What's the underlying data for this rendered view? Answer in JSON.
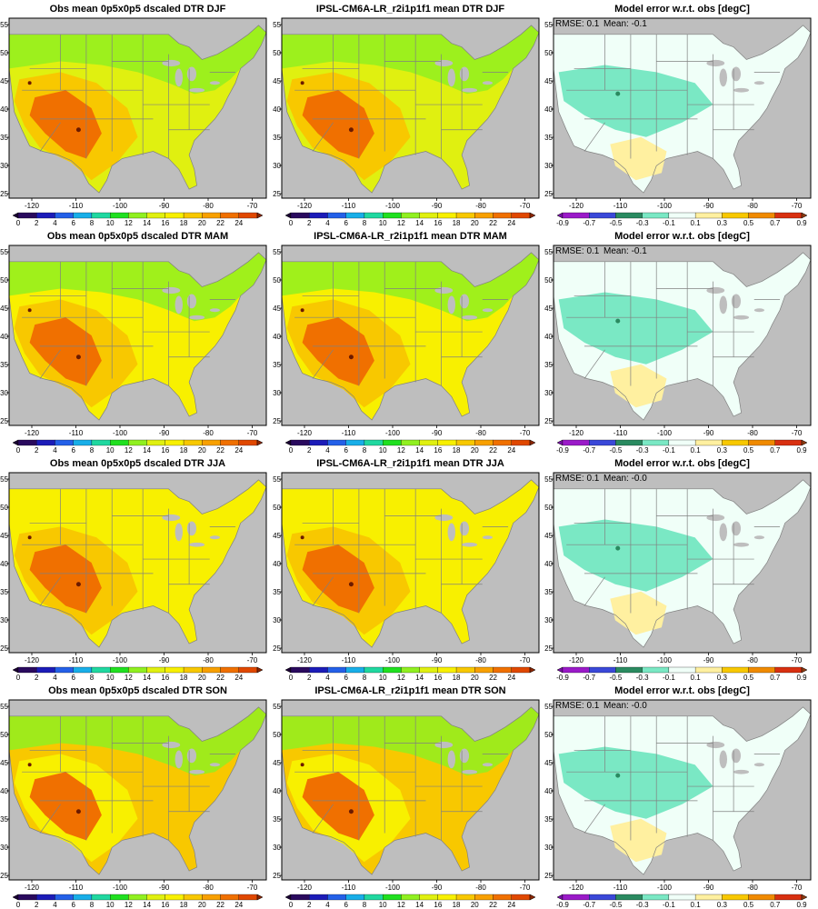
{
  "lon_ticks": [
    "-120",
    "-110",
    "-100",
    "-90",
    "-80",
    "-70"
  ],
  "lat_ticks": [
    "25",
    "30",
    "35",
    "40",
    "45",
    "50",
    "55"
  ],
  "colorbars": {
    "dtr": {
      "labels": [
        "0",
        "2",
        "4",
        "6",
        "8",
        "10",
        "12",
        "14",
        "16",
        "18",
        "20",
        "22",
        "24"
      ],
      "colors": [
        "#2a0a5e",
        "#1c1cb8",
        "#2460e8",
        "#18aee8",
        "#20d8a0",
        "#20e020",
        "#90f020",
        "#e0f010",
        "#f8f000",
        "#f8c800",
        "#f8a000",
        "#f07000",
        "#e04800"
      ],
      "below_color": "#1a0033",
      "above_color": "#8b2500"
    },
    "err": {
      "labels": [
        "-0.9",
        "-0.7",
        "-0.5",
        "-0.3",
        "-0.1",
        "0.1",
        "0.3",
        "0.5",
        "0.7",
        "0.9"
      ],
      "colors": [
        "#9a1ac8",
        "#3a48d8",
        "#2a8a60",
        "#7ae8c4",
        "#f0fff8",
        "#fff0a0",
        "#f8c800",
        "#f08a00",
        "#d83010"
      ],
      "below_color": "#7a10a8",
      "above_color": "#8b3a10"
    }
  },
  "rows": [
    {
      "season": "DJF",
      "obs_title": "Obs mean 0p5x0p5 dscaled DTR DJF",
      "model_title": "IPSL-CM6A-LR_r2i1p1f1 mean DTR DJF",
      "err_title": "Model error w.r.t. obs [degC]",
      "rmse": "RMSE: 0.1",
      "mean": "Mean: -0.1",
      "dominant": "#e0f010",
      "feature": "#f8c800",
      "hot": "#f07000",
      "err_base": "#f0fff8",
      "err_blob": "#7ae8c4",
      "err_warm": "#fff0a0"
    },
    {
      "season": "MAM",
      "obs_title": "Obs mean 0p5x0p5 dscaled DTR MAM",
      "model_title": "IPSL-CM6A-LR_r2i1p1f1 mean DTR MAM",
      "err_title": "Model error w.r.t. obs [degC]",
      "rmse": "RMSE: 0.1",
      "mean": "Mean: -0.1",
      "dominant": "#f8f000",
      "feature": "#f8c800",
      "hot": "#f07000",
      "err_base": "#f0fff8",
      "err_blob": "#7ae8c4",
      "err_warm": "#fff0a0"
    },
    {
      "season": "JJA",
      "obs_title": "Obs mean 0p5x0p5 dscaled DTR JJA",
      "model_title": "IPSL-CM6A-LR_r2i1p1f1 mean DTR JJA",
      "err_title": "Model error w.r.t. obs [degC]",
      "rmse": "RMSE: 0.1",
      "mean": "Mean: -0.0",
      "dominant": "#f8f000",
      "feature": "#f8c800",
      "hot": "#f07000",
      "err_base": "#f0fff8",
      "err_blob": "#7ae8c4",
      "err_warm": "#fff0a0"
    },
    {
      "season": "SON",
      "obs_title": "Obs mean 0p5x0p5 dscaled DTR SON",
      "model_title": "IPSL-CM6A-LR_r2i1p1f1 mean DTR SON",
      "err_title": "Model error w.r.t. obs [degC]",
      "rmse": "RMSE: 0.1",
      "mean": "Mean: -0.0",
      "dominant": "#f8c800",
      "feature": "#f8f000",
      "hot": "#f07000",
      "err_base": "#f0fff8",
      "err_blob": "#7ae8c4",
      "err_warm": "#fff0a0"
    }
  ],
  "colors": {
    "ocean_mask": "#bebebe",
    "state_lines": "#808080",
    "frame": "#000000"
  }
}
